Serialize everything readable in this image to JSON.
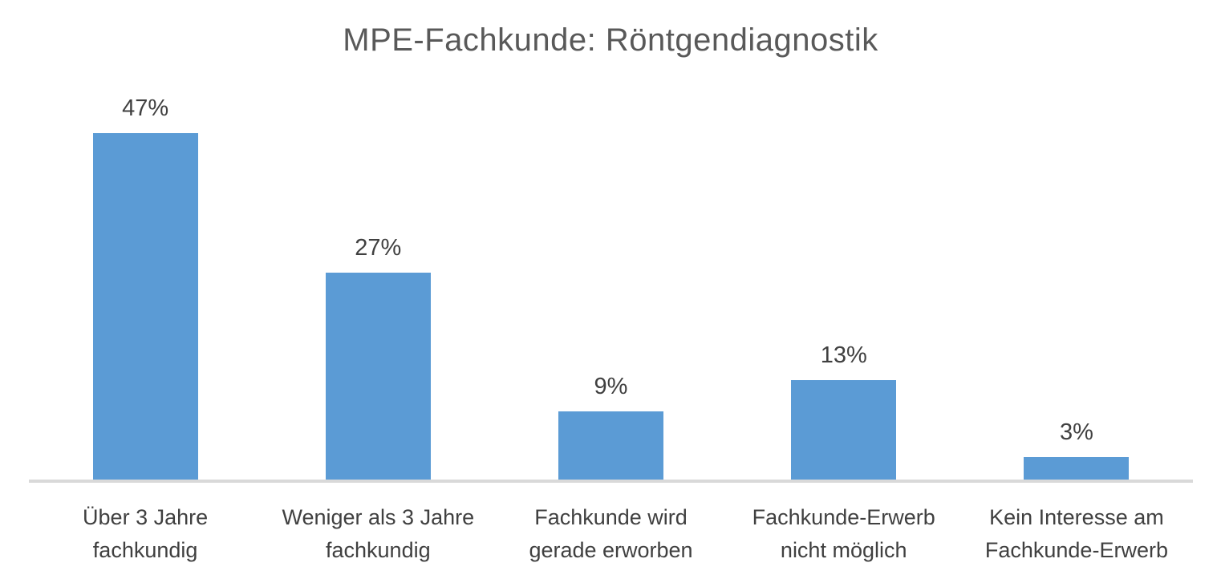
{
  "chart_data": {
    "type": "bar",
    "title": "MPE-Fachkunde: Röntgendiagnostik",
    "categories": [
      "Über 3 Jahre fachkundig",
      "Weniger als 3 Jahre fachkundig",
      "Fachkunde wird gerade erworben",
      "Fachkunde-Erwerb nicht möglich",
      "Kein Interesse am Fachkunde-Erwerb"
    ],
    "category_label_lines": [
      [
        "Über 3 Jahre",
        "fachkundig"
      ],
      [
        "Weniger als 3 Jahre",
        "fachkundig"
      ],
      [
        "Fachkunde wird",
        "gerade erworben"
      ],
      [
        "Fachkunde-Erwerb",
        "nicht möglich"
      ],
      [
        "Kein Interesse am",
        "Fachkunde-Erwerb"
      ]
    ],
    "values": [
      47,
      27,
      9,
      13,
      3
    ],
    "data_labels": [
      "47%",
      "27%",
      "9%",
      "13%",
      "3%"
    ],
    "xlabel": "",
    "ylabel": "",
    "ylim": [
      0,
      50
    ],
    "grid": false,
    "legend_position": "none",
    "colors": {
      "bar": "#5B9BD5",
      "axis_line": "#D9D9D9",
      "title_text": "#595959",
      "label_text": "#404040",
      "background": "#FFFFFF"
    }
  }
}
